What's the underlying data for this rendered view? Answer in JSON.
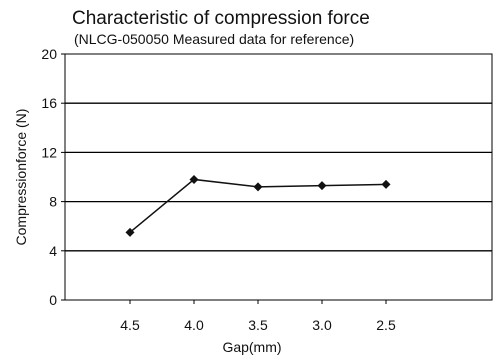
{
  "chart_data": {
    "type": "line",
    "title": "Characteristic of compression force",
    "subtitle": "(NLCG-050050 Measured data for reference)",
    "xlabel": "Gap(mm)",
    "ylabel": "Compressionforce (N)",
    "categories": [
      "4.5",
      "4.0",
      "3.5",
      "3.0",
      "2.5"
    ],
    "series": [
      {
        "values": [
          5.5,
          9.8,
          9.2,
          9.3,
          9.4
        ]
      }
    ],
    "yticks": [
      0,
      4,
      8,
      12,
      16,
      20
    ],
    "ylim": [
      0,
      20
    ],
    "grid": "horizontal",
    "colors": {
      "line": "#111111",
      "grid": "#000000"
    }
  }
}
